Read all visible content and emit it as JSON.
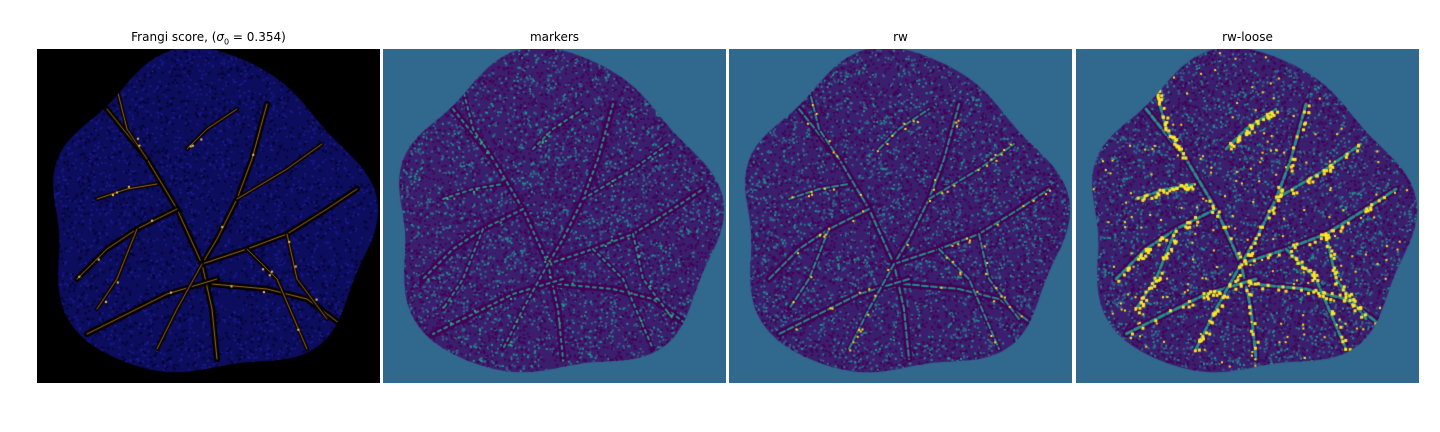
{
  "figure": {
    "panels": [
      {
        "id": "frangi",
        "title_prefix": "Frangi score, (",
        "title_symbol": "σ",
        "title_subscript": "0",
        "title_suffix": " = 0.354)",
        "colors": {
          "background": "#000000",
          "blob": "#0d0d5e",
          "blob_dark": "#050530",
          "vessel": "#e08a1a",
          "vessel_light": "#f4d06a"
        }
      },
      {
        "id": "markers",
        "title": "markers",
        "colors": {
          "background": "#31688e",
          "blob": "#3b1f6e",
          "blob_dark": "#440154",
          "vessel": "#21918c",
          "vessel_light": "#35b779"
        }
      },
      {
        "id": "rw",
        "title": "rw",
        "colors": {
          "background": "#31688e",
          "blob": "#3b1f6e",
          "blob_dark": "#440154",
          "vessel": "#21918c",
          "vessel_light": "#fde725"
        }
      },
      {
        "id": "rw-loose",
        "title": "rw-loose",
        "colors": {
          "background": "#31688e",
          "blob": "#3b1f6e",
          "blob_dark": "#440154",
          "vessel": "#21918c",
          "vessel_light": "#fde725"
        }
      }
    ]
  }
}
